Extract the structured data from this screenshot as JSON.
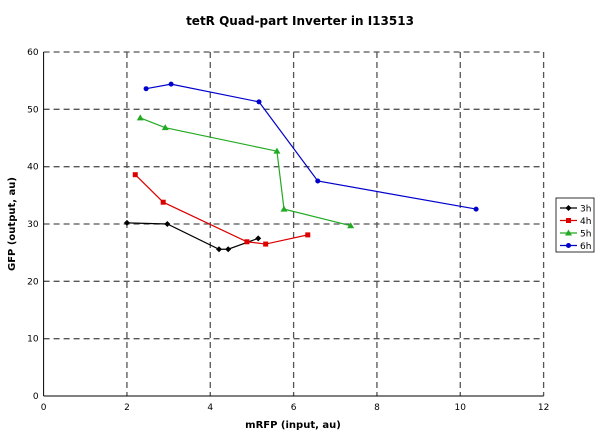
{
  "chart_data": {
    "type": "line",
    "title": "tetR Quad-part Inverter in I13513",
    "xlabel": "mRFP (input, au)",
    "ylabel": "GFP (output, au)",
    "xlim": [
      0,
      12
    ],
    "ylim": [
      0,
      60
    ],
    "xticks": [
      0,
      2,
      4,
      6,
      8,
      10,
      12
    ],
    "yticks": [
      0,
      10,
      20,
      30,
      40,
      50,
      60
    ],
    "grid": true,
    "legend_position": "right",
    "series": [
      {
        "name": "3h",
        "color": "#000000",
        "marker": "diamond",
        "x": [
          2.0,
          2.97,
          4.21,
          4.43,
          5.15
        ],
        "y": [
          30.2,
          30.0,
          25.6,
          25.6,
          27.5
        ]
      },
      {
        "name": "4h",
        "color": "#dd0000",
        "marker": "square",
        "x": [
          2.2,
          2.87,
          4.88,
          5.33,
          6.34
        ],
        "y": [
          38.6,
          33.8,
          26.9,
          26.5,
          28.1
        ]
      },
      {
        "name": "5h",
        "color": "#22aa22",
        "marker": "triangle",
        "x": [
          2.32,
          2.92,
          5.6,
          5.77,
          7.37
        ],
        "y": [
          48.5,
          46.8,
          42.7,
          32.6,
          29.7
        ]
      },
      {
        "name": "6h",
        "color": "#0000cc",
        "marker": "circle",
        "x": [
          2.46,
          3.06,
          5.17,
          6.58,
          10.38
        ],
        "y": [
          53.6,
          54.4,
          51.3,
          37.5,
          32.6
        ]
      }
    ]
  }
}
